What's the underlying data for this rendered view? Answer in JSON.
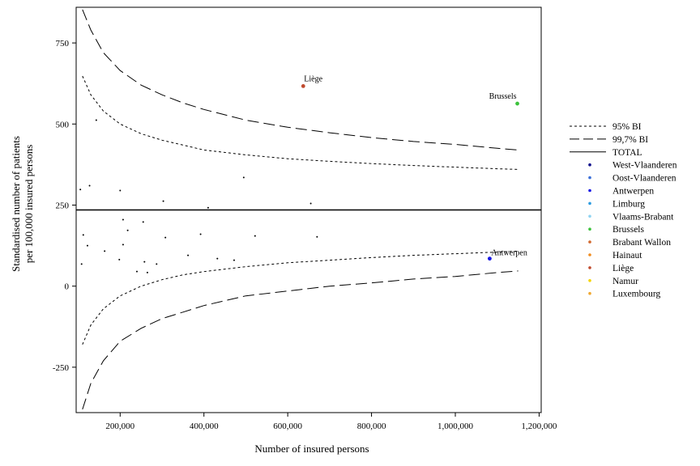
{
  "chart_data": {
    "type": "scatter",
    "title": "",
    "xlabel": "Number of insured persons",
    "ylabel_lines": [
      "Standardised number of patients",
      "per 100,000 insured persons"
    ],
    "xlim": [
      95000,
      1205000
    ],
    "ylim": [
      -390,
      860
    ],
    "x_ticks": [
      200000,
      400000,
      600000,
      800000,
      1000000,
      1200000
    ],
    "x_tick_labels": [
      "200,000",
      "400,000",
      "600,000",
      "800,000",
      "1,000,000",
      "1,200,000"
    ],
    "y_ticks": [
      -250,
      0,
      250,
      500,
      750
    ],
    "y_tick_labels": [
      "-250",
      "0",
      "250",
      "500",
      "750"
    ],
    "grid": false,
    "legend_position": "right",
    "total": 235,
    "funnel": {
      "x": [
        110000,
        130000,
        160000,
        200000,
        250000,
        300000,
        350000,
        400000,
        500000,
        600000,
        700000,
        800000,
        900000,
        1000000,
        1100000,
        1150000
      ],
      "bi95_upper": [
        648,
        590,
        540,
        500,
        470,
        450,
        435,
        420,
        405,
        393,
        385,
        378,
        372,
        367,
        362,
        360
      ],
      "bi95_lower": [
        -180,
        -120,
        -70,
        -30,
        0,
        20,
        35,
        45,
        60,
        72,
        80,
        88,
        95,
        100,
        105,
        108
      ],
      "bi997_upper": [
        853,
        790,
        720,
        665,
        620,
        590,
        565,
        545,
        512,
        490,
        473,
        458,
        446,
        437,
        425,
        420
      ],
      "bi997_lower": [
        -380,
        -300,
        -230,
        -170,
        -130,
        -100,
        -80,
        -60,
        -30,
        -15,
        0,
        10,
        22,
        30,
        42,
        47
      ]
    },
    "points": [
      {
        "x": 105000,
        "y": 298
      },
      {
        "x": 108000,
        "y": 68
      },
      {
        "x": 112000,
        "y": 158
      },
      {
        "x": 122000,
        "y": 125
      },
      {
        "x": 127000,
        "y": 310
      },
      {
        "x": 143000,
        "y": 512
      },
      {
        "x": 163000,
        "y": 108
      },
      {
        "x": 198000,
        "y": 82
      },
      {
        "x": 200000,
        "y": 295
      },
      {
        "x": 207000,
        "y": 205
      },
      {
        "x": 207000,
        "y": 128
      },
      {
        "x": 218000,
        "y": 172
      },
      {
        "x": 240000,
        "y": 45
      },
      {
        "x": 255000,
        "y": 198
      },
      {
        "x": 258000,
        "y": 75
      },
      {
        "x": 265000,
        "y": 42
      },
      {
        "x": 287000,
        "y": 68
      },
      {
        "x": 303000,
        "y": 262
      },
      {
        "x": 308000,
        "y": 150
      },
      {
        "x": 362000,
        "y": 95
      },
      {
        "x": 392000,
        "y": 160
      },
      {
        "x": 410000,
        "y": 242
      },
      {
        "x": 432000,
        "y": 85
      },
      {
        "x": 472000,
        "y": 80
      },
      {
        "x": 495000,
        "y": 335
      },
      {
        "x": 522000,
        "y": 155
      },
      {
        "x": 655000,
        "y": 255
      },
      {
        "x": 670000,
        "y": 152
      }
    ],
    "labeled_points": [
      {
        "name": "Liège",
        "x": 637000,
        "y": 617,
        "color": "#c04a2e"
      },
      {
        "name": "Brussels",
        "x": 1148000,
        "y": 563,
        "color": "#3cc23c"
      },
      {
        "name": "Antwerpen",
        "x": 1082000,
        "y": 85,
        "color": "#1515e6"
      }
    ],
    "legend": [
      {
        "label": "95% BI",
        "kind": "dotted"
      },
      {
        "label": "99,7% BI",
        "kind": "dashed"
      },
      {
        "label": "TOTAL",
        "kind": "solid"
      },
      {
        "label": "West-Vlaanderen",
        "kind": "point",
        "color": "#0a0a8a"
      },
      {
        "label": "Oost-Vlaanderen",
        "kind": "point",
        "color": "#3a6fd8"
      },
      {
        "label": "Antwerpen",
        "kind": "point",
        "color": "#1515e6"
      },
      {
        "label": "Limburg",
        "kind": "point",
        "color": "#2a9be0"
      },
      {
        "label": "Vlaams-Brabant",
        "kind": "point",
        "color": "#8fd3f2"
      },
      {
        "label": "Brussels",
        "kind": "point",
        "color": "#3cc23c"
      },
      {
        "label": "Brabant Wallon",
        "kind": "point",
        "color": "#d2692e"
      },
      {
        "label": "Hainaut",
        "kind": "point",
        "color": "#f08c1e"
      },
      {
        "label": "Liège",
        "kind": "point",
        "color": "#c04a2e"
      },
      {
        "label": "Namur",
        "kind": "point",
        "color": "#f5d400"
      },
      {
        "label": "Luxembourg",
        "kind": "point",
        "color": "#f0a830"
      }
    ]
  }
}
